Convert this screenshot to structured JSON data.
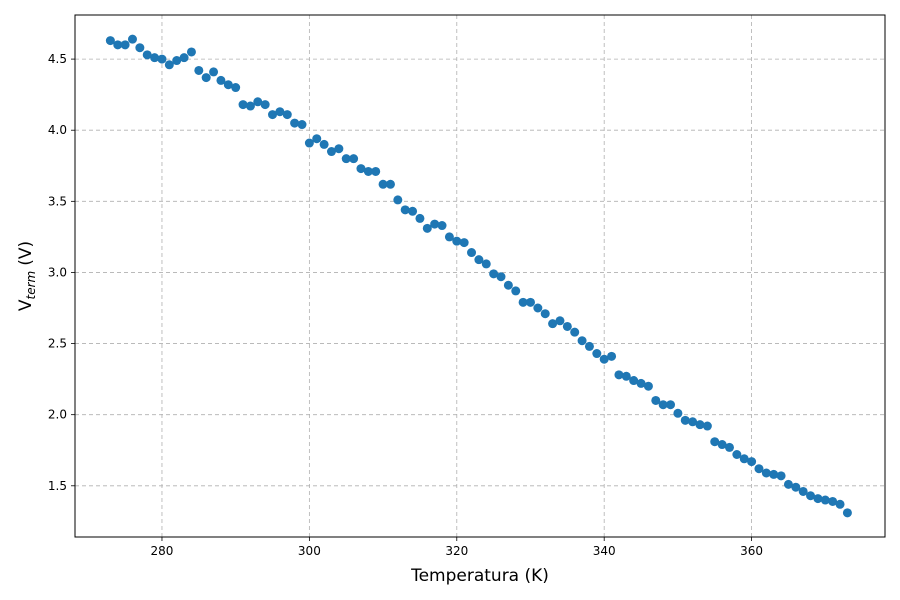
{
  "chart_data": {
    "type": "scatter",
    "x_label": "Temperatura (K)",
    "y_label": "V",
    "y_label_sub": "term",
    "y_label_unit": "(V)",
    "color": "#1f77b4",
    "grid": true,
    "xlim": [
      268.2,
      378.1
    ],
    "ylim": [
      1.14,
      4.81
    ],
    "xticks": [
      280,
      300,
      320,
      340,
      360
    ],
    "yticks": [
      1.5,
      {
        "value": 2.0,
        "label": "2.0"
      },
      2.5,
      {
        "value": 3.0,
        "label": "3.0"
      },
      3.5,
      {
        "value": 4.0,
        "label": "4.0"
      },
      4.5
    ],
    "x": [
      273,
      274,
      275,
      276,
      277,
      278,
      279,
      280,
      281,
      282,
      283,
      284,
      285,
      286,
      287,
      288,
      289,
      290,
      291,
      292,
      293,
      294,
      295,
      296,
      297,
      298,
      299,
      300,
      301,
      302,
      303,
      304,
      305,
      306,
      307,
      308,
      309,
      310,
      311,
      312,
      313,
      314,
      315,
      316,
      317,
      318,
      319,
      320,
      321,
      322,
      323,
      324,
      325,
      326,
      327,
      328,
      329,
      330,
      331,
      332,
      333,
      334,
      335,
      336,
      337,
      338,
      339,
      340,
      341,
      342,
      343,
      344,
      345,
      346,
      347,
      348,
      349,
      350,
      351,
      352,
      353,
      354,
      355,
      356,
      357,
      358,
      359,
      360,
      361,
      362,
      363,
      364,
      365,
      366,
      367,
      368,
      369,
      370,
      371,
      372,
      373
    ],
    "values": [
      4.63,
      4.6,
      4.6,
      4.64,
      4.58,
      4.53,
      4.51,
      4.5,
      4.46,
      4.49,
      4.51,
      4.55,
      4.42,
      4.37,
      4.41,
      4.35,
      4.32,
      4.3,
      4.18,
      4.17,
      4.2,
      4.18,
      4.11,
      4.13,
      4.11,
      4.05,
      4.04,
      3.91,
      3.94,
      3.9,
      3.85,
      3.87,
      3.8,
      3.8,
      3.73,
      3.71,
      3.71,
      3.62,
      3.62,
      3.51,
      3.44,
      3.43,
      3.38,
      3.31,
      3.34,
      3.33,
      3.25,
      3.22,
      3.21,
      3.14,
      3.09,
      3.06,
      2.99,
      2.97,
      2.91,
      2.87,
      2.79,
      2.79,
      2.75,
      2.71,
      2.64,
      2.66,
      2.62,
      2.58,
      2.52,
      2.48,
      2.43,
      2.39,
      2.41,
      2.28,
      2.27,
      2.24,
      2.22,
      2.2,
      2.1,
      2.07,
      2.07,
      2.01,
      1.96,
      1.95,
      1.93,
      1.92,
      1.81,
      1.79,
      1.77,
      1.72,
      1.69,
      1.67,
      1.62,
      1.59,
      1.58,
      1.57,
      1.51,
      1.49,
      1.46,
      1.43,
      1.41,
      1.4,
      1.39,
      1.37,
      1.31
    ]
  }
}
